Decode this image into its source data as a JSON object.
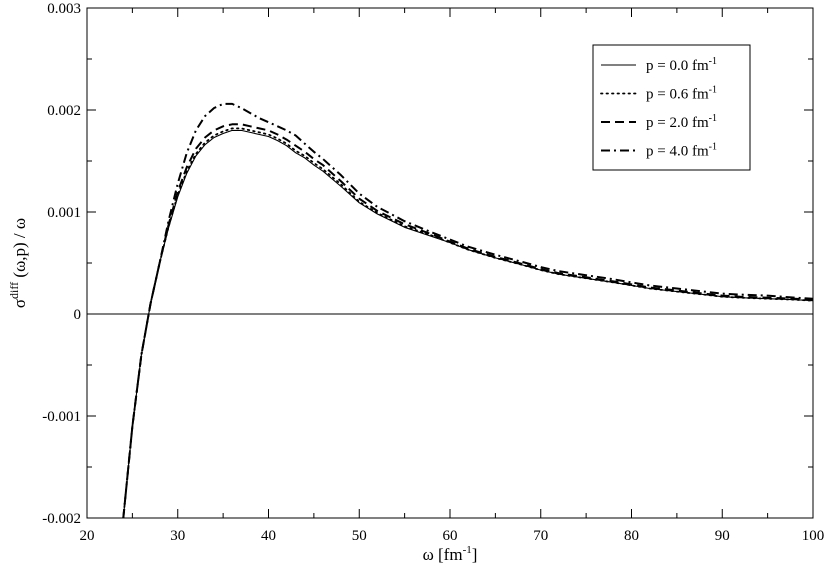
{
  "chart_data": {
    "type": "line",
    "xlabel": {
      "main": "ω [fm",
      "sup": "-1",
      "end": "]"
    },
    "ylabel": {
      "sigma": "σ",
      "sup": "diff",
      "rest": " (ω,p) / ω"
    },
    "xlim": [
      20,
      100
    ],
    "ylim": [
      -0.002,
      0.003
    ],
    "xticks": [
      20,
      30,
      40,
      50,
      60,
      70,
      80,
      90,
      100
    ],
    "yticks": [
      -0.002,
      -0.001,
      0,
      0.001,
      0.002,
      0.003
    ],
    "xtick_labels": [
      "20",
      "30",
      "40",
      "50",
      "60",
      "70",
      "80",
      "90",
      "100"
    ],
    "ytick_labels": [
      "-0.002",
      "-0.001",
      "0",
      "0.001",
      "0.002",
      "0.003"
    ],
    "zero_line": true,
    "grid": false,
    "legend_position": "top-right",
    "series": [
      {
        "name": "p = 0.0 fm",
        "name_sup": "-1",
        "style": "solid",
        "x": [
          24.0,
          25.0,
          26.0,
          27.0,
          28.0,
          29.0,
          30.0,
          31.0,
          32.0,
          33.0,
          34.0,
          35.0,
          36.0,
          37.0,
          38.0,
          39.0,
          40.0,
          41.0,
          42.0,
          43.0,
          44.0,
          45.0,
          46.0,
          48.0,
          50.0,
          52.0,
          55.0,
          58.0,
          60.0,
          62.0,
          65.0,
          68.0,
          70.0,
          72.0,
          75.0,
          78.0,
          80.0,
          82.0,
          85.0,
          88.0,
          90.0,
          92.0,
          95.0,
          98.0,
          100.0
        ],
        "y": [
          -0.002,
          -0.0011,
          -0.0004,
          0.0001,
          0.0005,
          0.00085,
          0.00115,
          0.00138,
          0.00155,
          0.00166,
          0.00173,
          0.00177,
          0.0018,
          0.0018,
          0.00178,
          0.00176,
          0.00174,
          0.0017,
          0.00165,
          0.00158,
          0.00153,
          0.00146,
          0.0014,
          0.00125,
          0.00109,
          0.00098,
          0.00085,
          0.00076,
          0.0007,
          0.00063,
          0.00055,
          0.00048,
          0.00043,
          0.00039,
          0.00035,
          0.00031,
          0.00028,
          0.00025,
          0.00022,
          0.00019,
          0.00017,
          0.00016,
          0.00015,
          0.00014,
          0.00013
        ]
      },
      {
        "name": "p = 0.6 fm",
        "name_sup": "-1",
        "style": "dotted",
        "x": [
          24.0,
          25.0,
          26.0,
          27.0,
          28.0,
          29.0,
          30.0,
          31.0,
          32.0,
          33.0,
          34.0,
          35.0,
          36.0,
          37.0,
          38.0,
          39.0,
          40.0,
          41.0,
          42.0,
          43.0,
          44.0,
          45.0,
          46.0,
          48.0,
          50.0,
          52.0,
          55.0,
          58.0,
          60.0,
          62.0,
          65.0,
          68.0,
          70.0,
          72.0,
          75.0,
          78.0,
          80.0,
          82.0,
          85.0,
          88.0,
          90.0,
          92.0,
          95.0,
          98.0,
          100.0
        ],
        "y": [
          -0.002,
          -0.0011,
          -0.0004,
          0.0001,
          0.0005,
          0.00086,
          0.00117,
          0.0014,
          0.00157,
          0.00168,
          0.00175,
          0.00179,
          0.00182,
          0.00182,
          0.0018,
          0.00178,
          0.00176,
          0.00172,
          0.00167,
          0.0016,
          0.00155,
          0.00148,
          0.00142,
          0.00127,
          0.0011,
          0.00099,
          0.00086,
          0.00077,
          0.0007,
          0.00063,
          0.00055,
          0.00048,
          0.00043,
          0.00039,
          0.00035,
          0.00031,
          0.00028,
          0.00025,
          0.00022,
          0.00019,
          0.00017,
          0.00016,
          0.00015,
          0.00014,
          0.00013
        ]
      },
      {
        "name": "p = 2.0 fm",
        "name_sup": "-1",
        "style": "dashed",
        "x": [
          24.0,
          25.0,
          26.0,
          27.0,
          28.0,
          29.0,
          30.0,
          31.0,
          32.0,
          33.0,
          34.0,
          35.0,
          36.0,
          37.0,
          38.0,
          39.0,
          40.0,
          41.0,
          42.0,
          43.0,
          44.0,
          45.0,
          46.0,
          48.0,
          50.0,
          52.0,
          55.0,
          58.0,
          60.0,
          62.0,
          65.0,
          68.0,
          70.0,
          72.0,
          75.0,
          78.0,
          80.0,
          82.0,
          85.0,
          88.0,
          90.0,
          92.0,
          95.0,
          98.0,
          100.0
        ],
        "y": [
          -0.002,
          -0.0011,
          -0.0004,
          0.0001,
          0.0005,
          0.00088,
          0.0012,
          0.00144,
          0.00162,
          0.00173,
          0.0018,
          0.00184,
          0.00186,
          0.00186,
          0.00184,
          0.00182,
          0.0018,
          0.00176,
          0.00171,
          0.00165,
          0.00159,
          0.00152,
          0.00146,
          0.0013,
          0.00113,
          0.00101,
          0.00088,
          0.00078,
          0.00071,
          0.00064,
          0.00056,
          0.00049,
          0.00044,
          0.0004,
          0.00036,
          0.00032,
          0.00029,
          0.00026,
          0.00023,
          0.0002,
          0.00018,
          0.00017,
          0.00016,
          0.00015,
          0.00014
        ]
      },
      {
        "name": "p = 4.0 fm",
        "name_sup": "-1",
        "style": "dashdot",
        "x": [
          24.0,
          25.0,
          26.0,
          27.0,
          28.0,
          29.0,
          30.0,
          31.0,
          32.0,
          33.0,
          34.0,
          35.0,
          36.0,
          37.0,
          38.0,
          39.0,
          40.0,
          41.0,
          42.0,
          43.0,
          44.0,
          45.0,
          46.0,
          48.0,
          50.0,
          52.0,
          55.0,
          58.0,
          60.0,
          62.0,
          65.0,
          68.0,
          70.0,
          72.0,
          75.0,
          78.0,
          80.0,
          82.0,
          85.0,
          88.0,
          90.0,
          92.0,
          95.0,
          98.0,
          100.0
        ],
        "y": [
          -0.002,
          -0.0011,
          -0.0004,
          0.0001,
          0.0005,
          0.00092,
          0.00128,
          0.00158,
          0.0018,
          0.00194,
          0.00202,
          0.00206,
          0.00206,
          0.00202,
          0.00197,
          0.00192,
          0.00188,
          0.00184,
          0.0018,
          0.00175,
          0.00167,
          0.00159,
          0.00152,
          0.00136,
          0.00118,
          0.00105,
          0.00091,
          0.0008,
          0.00073,
          0.00066,
          0.00058,
          0.00051,
          0.00046,
          0.00042,
          0.00038,
          0.00034,
          0.00031,
          0.00028,
          0.00025,
          0.00022,
          0.0002,
          0.00019,
          0.00018,
          0.00016,
          0.00015
        ]
      }
    ]
  }
}
